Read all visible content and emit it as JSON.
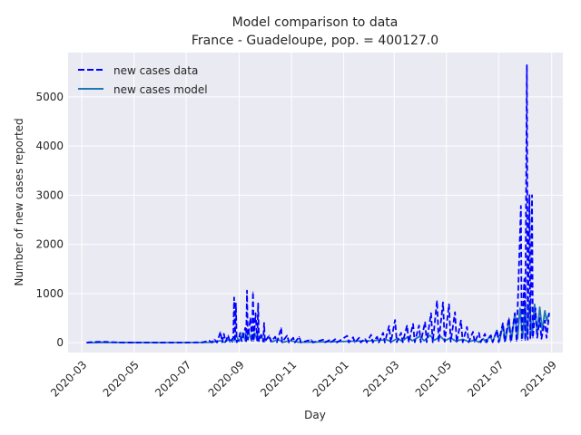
{
  "chart_data": {
    "type": "line",
    "title": "Model comparison to data",
    "subtitle": "France - Guadeloupe, pop. = 400127.0",
    "xlabel": "Day",
    "ylabel": "Number of new cases reported",
    "x_range": [
      "2020-02-14",
      "2021-09-14"
    ],
    "ylim": [
      -200,
      5900
    ],
    "x_ticks": [
      "2020-03",
      "2020-05",
      "2020-07",
      "2020-09",
      "2020-11",
      "2021-01",
      "2021-03",
      "2021-05",
      "2021-07",
      "2021-09"
    ],
    "x_tick_dates": [
      "2020-03-01",
      "2020-05-01",
      "2020-07-01",
      "2020-09-01",
      "2020-11-01",
      "2021-01-01",
      "2021-03-01",
      "2021-05-01",
      "2021-07-01",
      "2021-09-01"
    ],
    "y_ticks": [
      0,
      1000,
      2000,
      3000,
      4000,
      5000
    ],
    "grid": true,
    "legend_position": "top-left",
    "colors": {
      "background": "#eaeaf2",
      "grid": "#ffffff",
      "data": "#0000ff",
      "model": "#1f77b4"
    },
    "series": [
      {
        "name": "new cases data",
        "style": "dashed",
        "points": [
          [
            "2020-03-07",
            0
          ],
          [
            "2020-03-10",
            10
          ],
          [
            "2020-03-17",
            15
          ],
          [
            "2020-03-24",
            20
          ],
          [
            "2020-03-31",
            15
          ],
          [
            "2020-04-14",
            5
          ],
          [
            "2020-05-01",
            3
          ],
          [
            "2020-06-01",
            2
          ],
          [
            "2020-07-01",
            3
          ],
          [
            "2020-07-20",
            8
          ],
          [
            "2020-07-28",
            40
          ],
          [
            "2020-07-31",
            5
          ],
          [
            "2020-08-03",
            70
          ],
          [
            "2020-08-06",
            5
          ],
          [
            "2020-08-10",
            220
          ],
          [
            "2020-08-12",
            10
          ],
          [
            "2020-08-14",
            180
          ],
          [
            "2020-08-16",
            20
          ],
          [
            "2020-08-19",
            150
          ],
          [
            "2020-08-21",
            10
          ],
          [
            "2020-08-25",
            100
          ],
          [
            "2020-08-26",
            920
          ],
          [
            "2020-08-27",
            20
          ],
          [
            "2020-08-28",
            800
          ],
          [
            "2020-08-29",
            10
          ],
          [
            "2020-08-31",
            50
          ],
          [
            "2020-09-02",
            200
          ],
          [
            "2020-09-04",
            30
          ],
          [
            "2020-09-08",
            300
          ],
          [
            "2020-09-09",
            20
          ],
          [
            "2020-09-10",
            1060
          ],
          [
            "2020-09-11",
            60
          ],
          [
            "2020-09-14",
            500
          ],
          [
            "2020-09-16",
            30
          ],
          [
            "2020-09-17",
            1030
          ],
          [
            "2020-09-18",
            40
          ],
          [
            "2020-09-20",
            600
          ],
          [
            "2020-09-22",
            50
          ],
          [
            "2020-09-23",
            800
          ],
          [
            "2020-09-24",
            30
          ],
          [
            "2020-09-27",
            150
          ],
          [
            "2020-09-29",
            20
          ],
          [
            "2020-09-30",
            400
          ],
          [
            "2020-10-01",
            20
          ],
          [
            "2020-10-06",
            150
          ],
          [
            "2020-10-08",
            20
          ],
          [
            "2020-10-13",
            120
          ],
          [
            "2020-10-15",
            10
          ],
          [
            "2020-10-20",
            300
          ],
          [
            "2020-10-21",
            10
          ],
          [
            "2020-10-27",
            150
          ],
          [
            "2020-10-29",
            5
          ],
          [
            "2020-11-03",
            100
          ],
          [
            "2020-11-05",
            5
          ],
          [
            "2020-11-10",
            120
          ],
          [
            "2020-11-12",
            5
          ],
          [
            "2020-11-24",
            60
          ],
          [
            "2020-11-26",
            5
          ],
          [
            "2020-12-08",
            60
          ],
          [
            "2020-12-10",
            5
          ],
          [
            "2020-12-15",
            50
          ],
          [
            "2020-12-17",
            5
          ],
          [
            "2020-12-22",
            70
          ],
          [
            "2020-12-24",
            5
          ],
          [
            "2021-01-05",
            140
          ],
          [
            "2021-01-07",
            5
          ],
          [
            "2021-01-12",
            110
          ],
          [
            "2021-01-14",
            5
          ],
          [
            "2021-01-19",
            100
          ],
          [
            "2021-01-21",
            5
          ],
          [
            "2021-01-26",
            80
          ],
          [
            "2021-01-28",
            5
          ],
          [
            "2021-02-02",
            160
          ],
          [
            "2021-02-04",
            5
          ],
          [
            "2021-02-09",
            120
          ],
          [
            "2021-02-11",
            5
          ],
          [
            "2021-02-16",
            200
          ],
          [
            "2021-02-18",
            5
          ],
          [
            "2021-02-23",
            340
          ],
          [
            "2021-02-25",
            5
          ],
          [
            "2021-03-02",
            460
          ],
          [
            "2021-03-04",
            10
          ],
          [
            "2021-03-09",
            200
          ],
          [
            "2021-03-11",
            10
          ],
          [
            "2021-03-16",
            350
          ],
          [
            "2021-03-18",
            10
          ],
          [
            "2021-03-23",
            380
          ],
          [
            "2021-03-25",
            10
          ],
          [
            "2021-03-30",
            350
          ],
          [
            "2021-04-01",
            10
          ],
          [
            "2021-04-06",
            420
          ],
          [
            "2021-04-08",
            10
          ],
          [
            "2021-04-13",
            600
          ],
          [
            "2021-04-15",
            10
          ],
          [
            "2021-04-20",
            850
          ],
          [
            "2021-04-22",
            20
          ],
          [
            "2021-04-27",
            820
          ],
          [
            "2021-04-29",
            20
          ],
          [
            "2021-05-04",
            780
          ],
          [
            "2021-05-06",
            20
          ],
          [
            "2021-05-11",
            620
          ],
          [
            "2021-05-13",
            10
          ],
          [
            "2021-05-18",
            450
          ],
          [
            "2021-05-20",
            10
          ],
          [
            "2021-05-25",
            320
          ],
          [
            "2021-05-27",
            10
          ],
          [
            "2021-06-01",
            220
          ],
          [
            "2021-06-03",
            10
          ],
          [
            "2021-06-08",
            200
          ],
          [
            "2021-06-10",
            10
          ],
          [
            "2021-06-15",
            180
          ],
          [
            "2021-06-17",
            10
          ],
          [
            "2021-06-22",
            150
          ],
          [
            "2021-06-24",
            10
          ],
          [
            "2021-06-29",
            250
          ],
          [
            "2021-07-01",
            10
          ],
          [
            "2021-07-06",
            400
          ],
          [
            "2021-07-08",
            20
          ],
          [
            "2021-07-13",
            500
          ],
          [
            "2021-07-15",
            20
          ],
          [
            "2021-07-20",
            600
          ],
          [
            "2021-07-22",
            30
          ],
          [
            "2021-07-27",
            2780
          ],
          [
            "2021-07-28",
            50
          ],
          [
            "2021-07-31",
            1300
          ],
          [
            "2021-08-01",
            50
          ],
          [
            "2021-08-03",
            5650
          ],
          [
            "2021-08-04",
            60
          ],
          [
            "2021-08-06",
            3000
          ],
          [
            "2021-08-07",
            80
          ],
          [
            "2021-08-09",
            3000
          ],
          [
            "2021-08-10",
            100
          ],
          [
            "2021-08-13",
            700
          ],
          [
            "2021-08-15",
            100
          ],
          [
            "2021-08-18",
            500
          ],
          [
            "2021-08-20",
            80
          ],
          [
            "2021-08-24",
            450
          ],
          [
            "2021-08-26",
            100
          ],
          [
            "2021-08-29",
            600
          ]
        ]
      },
      {
        "name": "new cases model",
        "style": "solid",
        "points": [
          [
            "2020-03-07",
            0
          ],
          [
            "2020-04-01",
            5
          ],
          [
            "2020-06-01",
            3
          ],
          [
            "2020-07-20",
            5
          ],
          [
            "2020-08-01",
            10
          ],
          [
            "2020-08-10",
            40
          ],
          [
            "2020-08-15",
            10
          ],
          [
            "2020-08-20",
            70
          ],
          [
            "2020-08-24",
            15
          ],
          [
            "2020-08-28",
            150
          ],
          [
            "2020-09-01",
            30
          ],
          [
            "2020-09-05",
            200
          ],
          [
            "2020-09-08",
            40
          ],
          [
            "2020-09-12",
            220
          ],
          [
            "2020-09-15",
            50
          ],
          [
            "2020-09-19",
            200
          ],
          [
            "2020-09-22",
            40
          ],
          [
            "2020-09-26",
            160
          ],
          [
            "2020-09-30",
            30
          ],
          [
            "2020-10-05",
            110
          ],
          [
            "2020-10-10",
            20
          ],
          [
            "2020-10-16",
            70
          ],
          [
            "2020-10-22",
            10
          ],
          [
            "2020-10-30",
            40
          ],
          [
            "2020-11-10",
            10
          ],
          [
            "2020-12-01",
            15
          ],
          [
            "2021-01-01",
            25
          ],
          [
            "2021-02-01",
            40
          ],
          [
            "2021-02-20",
            60
          ],
          [
            "2021-02-26",
            20
          ],
          [
            "2021-03-05",
            90
          ],
          [
            "2021-03-10",
            30
          ],
          [
            "2021-03-17",
            120
          ],
          [
            "2021-03-22",
            40
          ],
          [
            "2021-03-31",
            130
          ],
          [
            "2021-04-05",
            40
          ],
          [
            "2021-04-12",
            150
          ],
          [
            "2021-04-17",
            50
          ],
          [
            "2021-04-24",
            130
          ],
          [
            "2021-04-29",
            40
          ],
          [
            "2021-05-06",
            100
          ],
          [
            "2021-05-12",
            30
          ],
          [
            "2021-05-20",
            70
          ],
          [
            "2021-05-27",
            20
          ],
          [
            "2021-06-03",
            50
          ],
          [
            "2021-06-08",
            10
          ],
          [
            "2021-06-13",
            80
          ],
          [
            "2021-06-16",
            10
          ],
          [
            "2021-06-21",
            140
          ],
          [
            "2021-06-24",
            20
          ],
          [
            "2021-06-29",
            250
          ],
          [
            "2021-07-02",
            30
          ],
          [
            "2021-07-06",
            350
          ],
          [
            "2021-07-09",
            40
          ],
          [
            "2021-07-13",
            450
          ],
          [
            "2021-07-16",
            50
          ],
          [
            "2021-07-20",
            600
          ],
          [
            "2021-07-23",
            80
          ],
          [
            "2021-07-26",
            700
          ],
          [
            "2021-07-29",
            100
          ],
          [
            "2021-08-01",
            800
          ],
          [
            "2021-08-03",
            120
          ],
          [
            "2021-08-06",
            820
          ],
          [
            "2021-08-09",
            150
          ],
          [
            "2021-08-12",
            780
          ],
          [
            "2021-08-15",
            200
          ],
          [
            "2021-08-18",
            720
          ],
          [
            "2021-08-21",
            250
          ],
          [
            "2021-08-24",
            650
          ],
          [
            "2021-08-26",
            450
          ],
          [
            "2021-08-29",
            600
          ]
        ]
      }
    ]
  }
}
